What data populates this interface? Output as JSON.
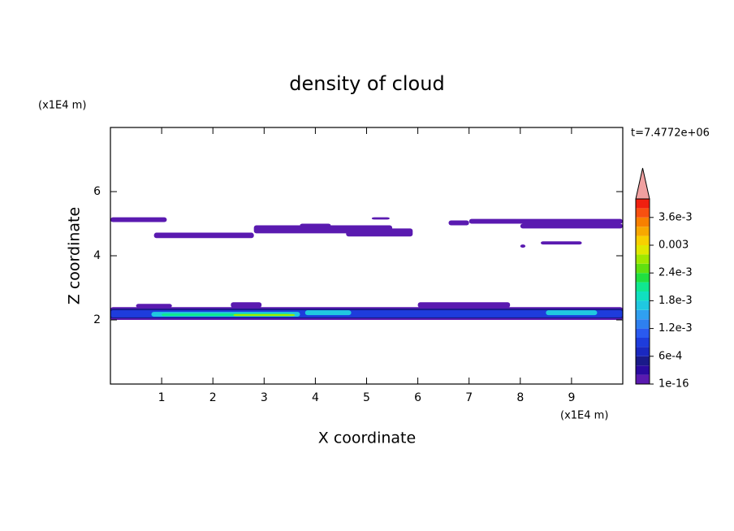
{
  "chart_data": {
    "type": "contour",
    "title": "density of cloud",
    "x_label": "X coordinate",
    "y_label": "Z coordinate",
    "x_unit": "(x1E4 m)",
    "y_unit": "(x1E4 m)",
    "time_label": "t=7.4772e+06",
    "xlim": [
      0,
      10
    ],
    "ylim": [
      0,
      8
    ],
    "xticks": [
      1,
      2,
      3,
      4,
      5,
      6,
      7,
      8,
      9
    ],
    "yticks": [
      2,
      4,
      6
    ],
    "levels": [
      1e-16,
      0.0002,
      0.0004,
      0.0006,
      0.0008,
      0.001,
      0.0012,
      0.0014,
      0.0016,
      0.0018,
      0.002,
      0.0022,
      0.0024,
      0.0026,
      0.0028,
      0.003,
      0.0032,
      0.0034,
      0.0036,
      0.0038,
      0.004
    ],
    "colors": [
      "#5a1ab0",
      "#2a0aa0",
      "#1a1a8a",
      "#1a28c0",
      "#1e3cdc",
      "#2a5af0",
      "#2e80f0",
      "#30a0f0",
      "#20c8e0",
      "#10e0c0",
      "#10e890",
      "#20e040",
      "#60e010",
      "#a0e800",
      "#e0e800",
      "#f8d000",
      "#f8a800",
      "#f88000",
      "#f85010",
      "#f02010"
    ],
    "extend_color": "#f0a0a0",
    "colorbar_ticks": [
      {
        "value": 1e-16,
        "label": "1e-16"
      },
      {
        "value": 0.0006,
        "label": "6e-4"
      },
      {
        "value": 0.0012,
        "label": "1.2e-3"
      },
      {
        "value": 0.0018,
        "label": "1.8e-3"
      },
      {
        "value": 0.0024,
        "label": "2.4e-3"
      },
      0.003,
      {
        "value": 0.0036,
        "label": "3.6e-3"
      }
    ],
    "regions": [
      {
        "x": [
          0.0,
          1.1
        ],
        "z": [
          5.05,
          5.2
        ],
        "value": 0.0001
      },
      {
        "x": [
          0.85,
          2.8
        ],
        "z": [
          4.55,
          4.72
        ],
        "value": 0.0001
      },
      {
        "x": [
          2.8,
          5.5
        ],
        "z": [
          4.7,
          4.95
        ],
        "value": 0.0001
      },
      {
        "x": [
          3.7,
          4.3
        ],
        "z": [
          4.9,
          5.0
        ],
        "value": 0.0001
      },
      {
        "x": [
          4.6,
          5.9
        ],
        "z": [
          4.6,
          4.85
        ],
        "value": 0.0001
      },
      {
        "x": [
          5.1,
          5.45
        ],
        "z": [
          5.13,
          5.2
        ],
        "value": 0.0001
      },
      {
        "x": [
          6.6,
          7.0
        ],
        "z": [
          4.95,
          5.1
        ],
        "value": 0.0001
      },
      {
        "x": [
          7.0,
          10.0
        ],
        "z": [
          5.0,
          5.15
        ],
        "value": 0.0001
      },
      {
        "x": [
          8.0,
          10.0
        ],
        "z": [
          4.85,
          5.0
        ],
        "value": 0.0001
      },
      {
        "x": [
          8.4,
          9.2
        ],
        "z": [
          4.35,
          4.45
        ],
        "value": 0.0001
      },
      {
        "x": [
          8.0,
          8.1
        ],
        "z": [
          4.25,
          4.35
        ],
        "value": 0.0001
      },
      {
        "x": [
          0.5,
          1.2
        ],
        "z": [
          2.38,
          2.5
        ],
        "value": 0.0001
      },
      {
        "x": [
          2.35,
          2.95
        ],
        "z": [
          2.38,
          2.55
        ],
        "value": 0.0001
      },
      {
        "x": [
          6.0,
          7.8
        ],
        "z": [
          2.38,
          2.55
        ],
        "value": 0.0001
      },
      {
        "x": [
          0.0,
          10.0
        ],
        "z": [
          2.0,
          2.4
        ],
        "value": 0.0001
      },
      {
        "x": [
          0.0,
          10.0
        ],
        "z": [
          2.05,
          2.35
        ],
        "value": 0.0004
      },
      {
        "x": [
          0.0,
          10.0
        ],
        "z": [
          2.08,
          2.3
        ],
        "value": 0.0009
      },
      {
        "x": [
          0.8,
          3.7
        ],
        "z": [
          2.1,
          2.25
        ],
        "value": 0.0017
      },
      {
        "x": [
          3.8,
          4.7
        ],
        "z": [
          2.15,
          2.3
        ],
        "value": 0.0017
      },
      {
        "x": [
          8.5,
          9.5
        ],
        "z": [
          2.15,
          2.3
        ],
        "value": 0.0017
      },
      {
        "x": [
          1.0,
          3.5
        ],
        "z": [
          2.12,
          2.2
        ],
        "value": 0.0021
      },
      {
        "x": [
          2.4,
          3.6
        ],
        "z": [
          2.12,
          2.18
        ],
        "value": 0.0027
      }
    ]
  }
}
